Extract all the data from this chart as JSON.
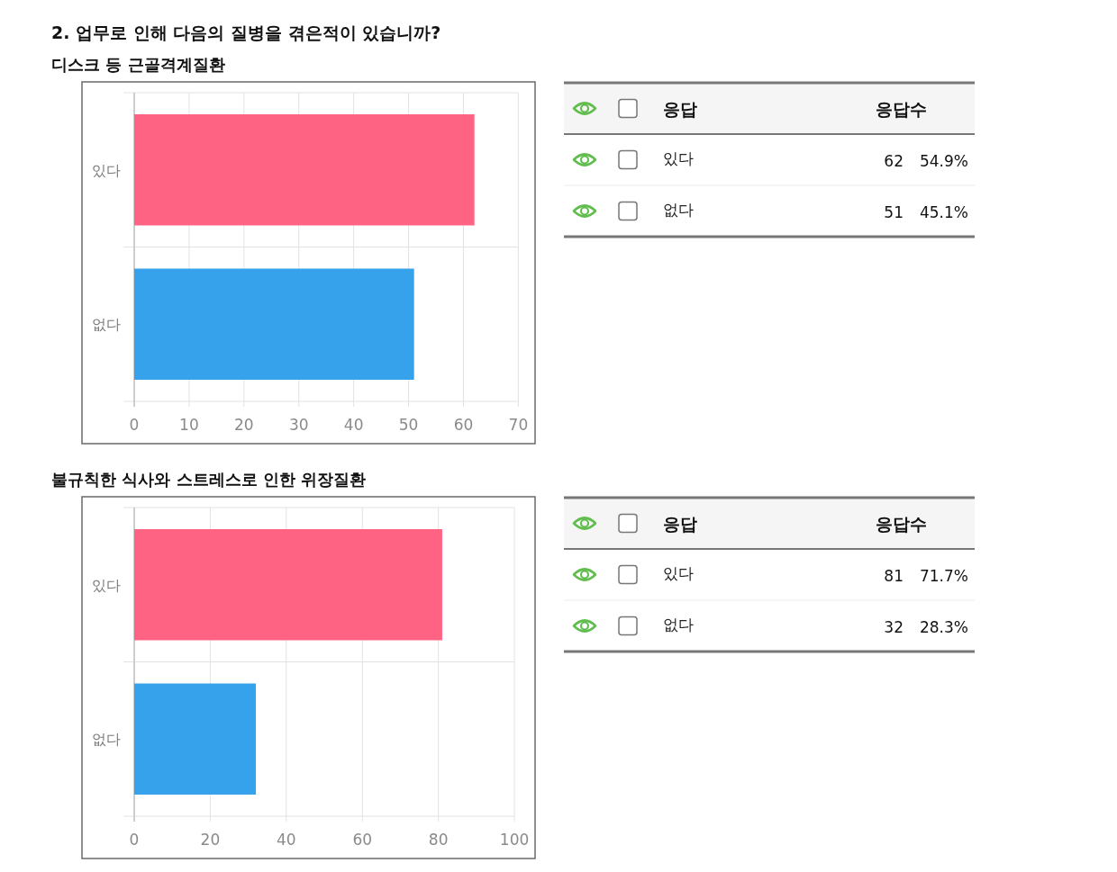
{
  "chart_data": [
    {
      "type": "bar",
      "orientation": "horizontal",
      "title": "2. 업무로 인해 다음의 질병을 겪은적이 있습니까?",
      "subtitle": "디스크 등 근골격계질환",
      "categories": [
        "있다",
        "없다"
      ],
      "values": [
        62,
        51
      ],
      "colors": [
        "#ff6384",
        "#36a2eb"
      ],
      "xlim": [
        0,
        70
      ],
      "xticks": [
        0,
        10,
        20,
        30,
        40,
        50,
        60,
        70
      ],
      "grid": true,
      "annotations": [
        "응답",
        "응답수",
        "62",
        "54.9%",
        "51",
        "45.1%"
      ]
    },
    {
      "type": "bar",
      "orientation": "horizontal",
      "title": "불규칙한 식사와 스트레스로 인한 위장질환",
      "categories": [
        "있다",
        "없다"
      ],
      "values": [
        81,
        32
      ],
      "colors": [
        "#ff6384",
        "#36a2eb"
      ],
      "xlim": [
        0,
        100
      ],
      "xticks": [
        0,
        20,
        40,
        60,
        80,
        100
      ],
      "grid": true,
      "annotations": [
        "응답",
        "응답수",
        "81",
        "71.7%",
        "32",
        "28.3%"
      ]
    }
  ]
}
